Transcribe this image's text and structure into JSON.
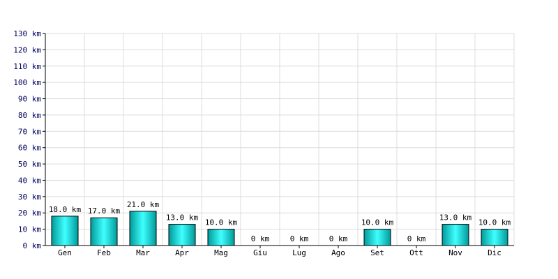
{
  "chart_data": {
    "type": "bar",
    "categories": [
      "Gen",
      "Feb",
      "Mar",
      "Apr",
      "Mag",
      "Giu",
      "Lug",
      "Ago",
      "Set",
      "Ott",
      "Nov",
      "Dic"
    ],
    "values": [
      18,
      17,
      21,
      13,
      10,
      0,
      0,
      0,
      10,
      0,
      13,
      10
    ],
    "data_labels": [
      "18.0 km",
      "17.0 km",
      "21.0 km",
      "13.0 km",
      "10.0 km",
      "0 km",
      "0 km",
      "0 km",
      "10.0 km",
      "0 km",
      "13.0 km",
      "10.0 km"
    ],
    "y_ticks": [
      "0 km",
      "10 km",
      "20 km",
      "30 km",
      "40 km",
      "50 km",
      "60 km",
      "70 km",
      "80 km",
      "90 km",
      "100 km",
      "110 km",
      "120 km",
      "130 km"
    ],
    "ylim": [
      0,
      130
    ],
    "title": "",
    "xlabel": "",
    "ylabel": "",
    "grid": true,
    "colors": {
      "bar_light": "#40ffff",
      "bar_dark": "#009a9a",
      "bar_border": "#000000",
      "grid": "#dcdcdc",
      "axis": "#000000",
      "tick_text": "#000060"
    }
  }
}
